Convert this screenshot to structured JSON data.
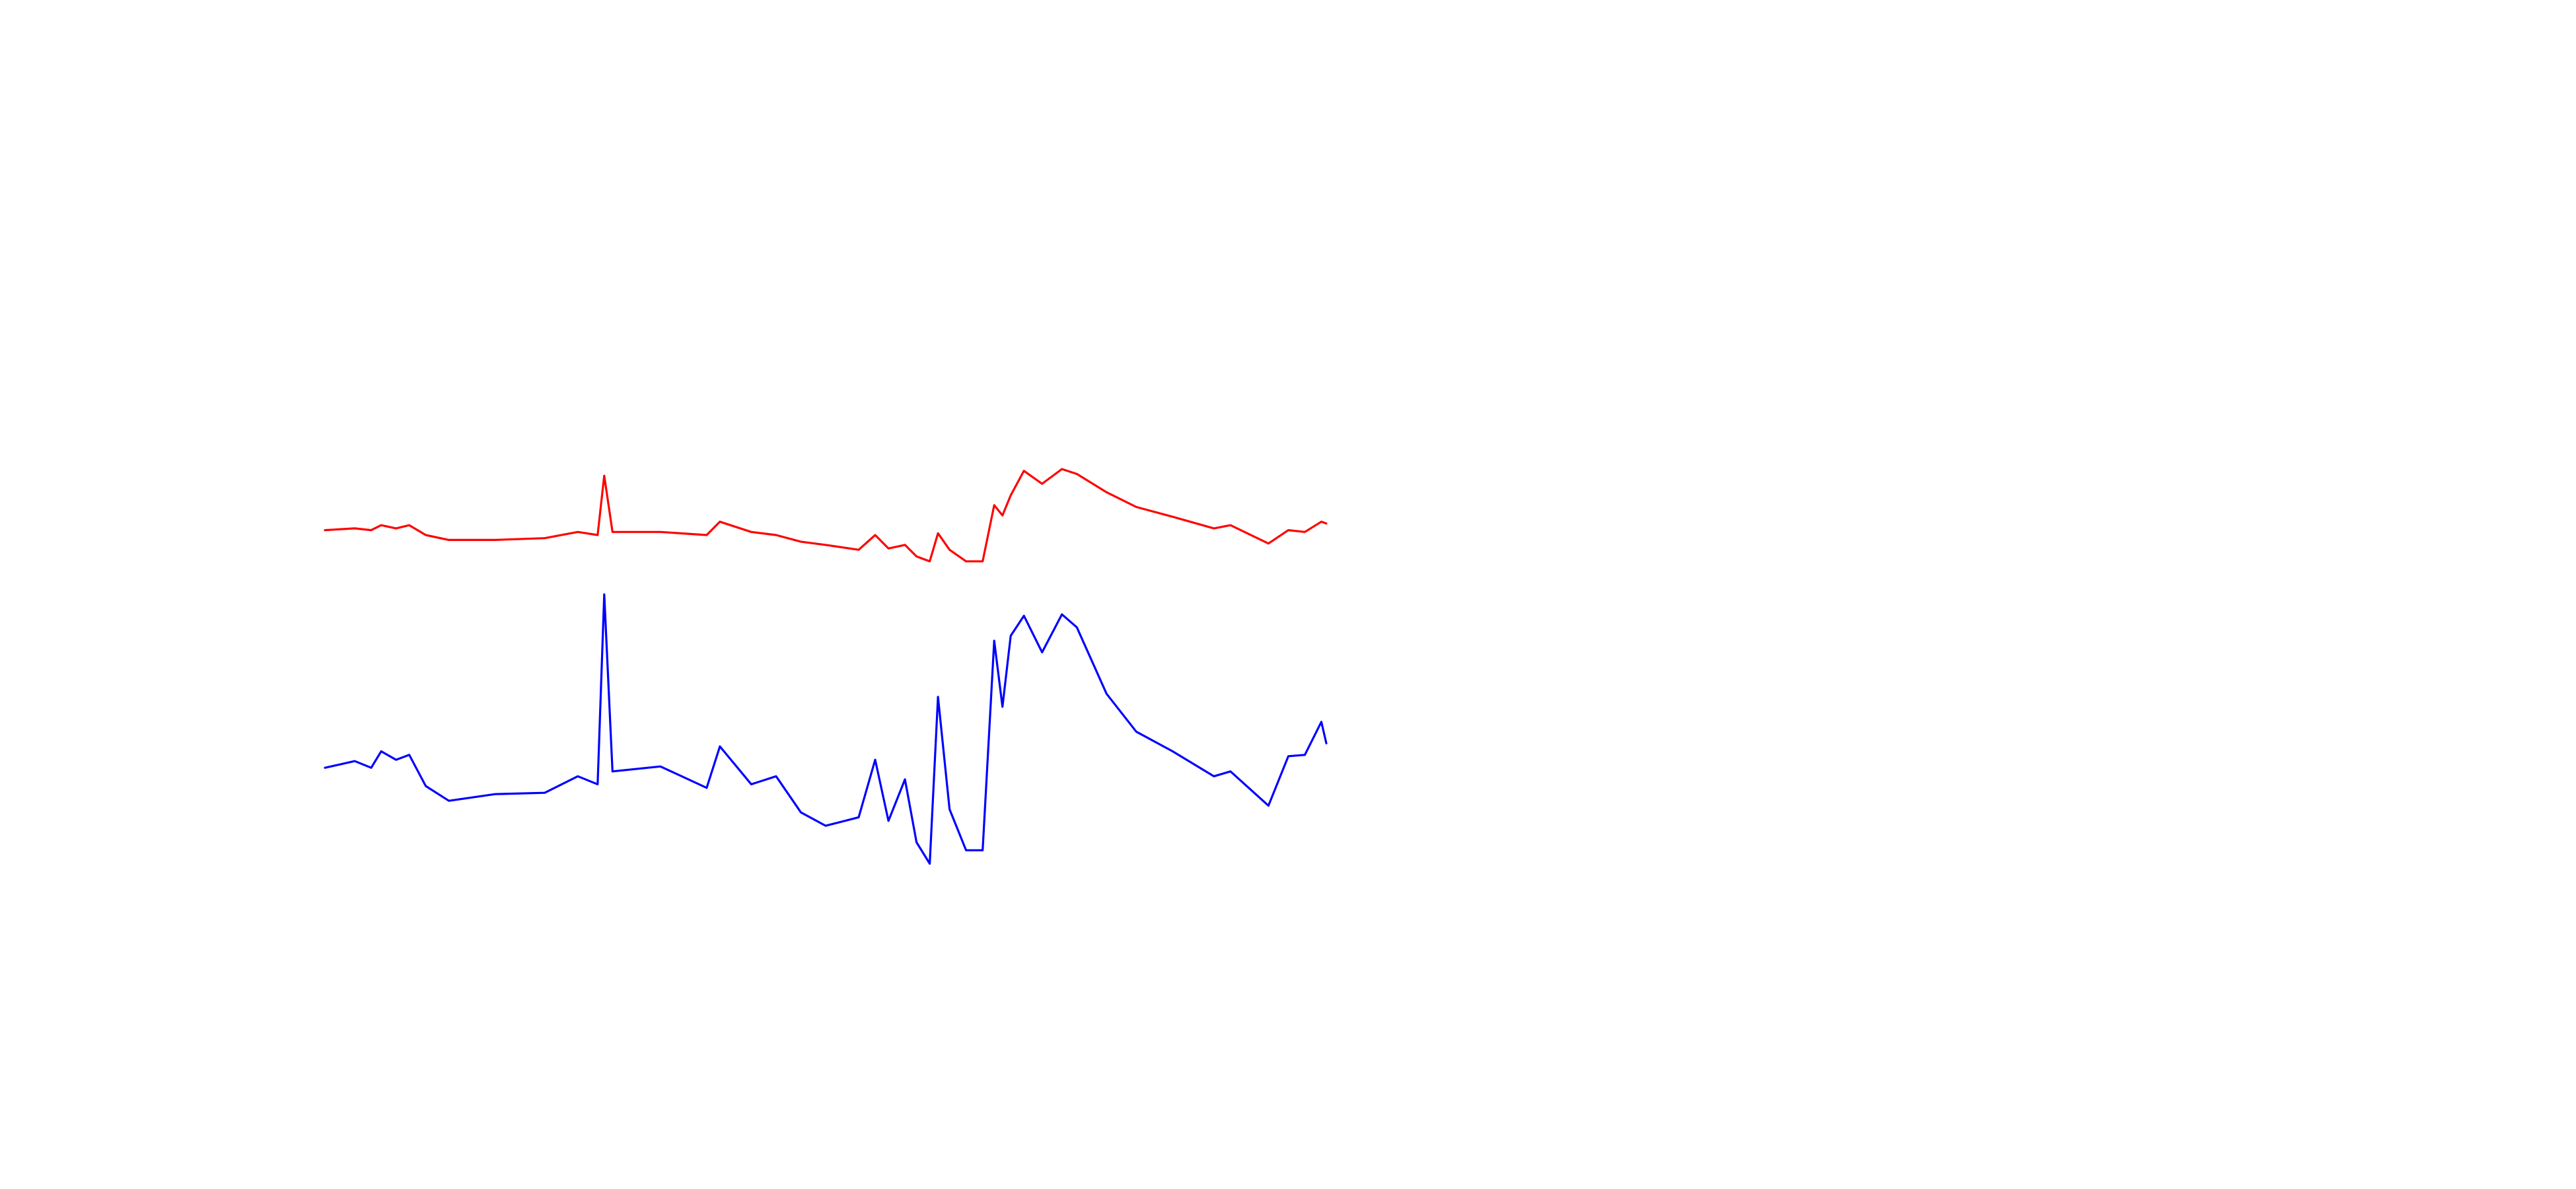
{
  "chart_data": {
    "type": "line",
    "x": [
      0,
      18,
      28,
      34,
      43,
      51,
      61,
      75,
      103,
      133,
      153,
      165,
      169,
      174,
      203,
      231,
      239,
      258,
      273,
      288,
      303,
      323,
      333,
      341,
      351,
      358,
      366,
      371,
      378,
      388,
      398,
      405,
      410,
      415,
      423,
      434,
      446,
      455,
      473,
      491,
      513,
      538,
      548,
      571,
      583,
      593,
      603,
      606
    ],
    "xlim": [
      0,
      606
    ],
    "ylim": [
      0,
      100
    ],
    "series": [
      {
        "color": "#ff0000",
        "values": [
          81.1,
          81.5,
          81.1,
          82.2,
          81.5,
          82.2,
          80.0,
          78.9,
          78.9,
          79.3,
          80.7,
          80.0,
          93.3,
          80.7,
          80.7,
          80.0,
          83.0,
          80.7,
          80.0,
          78.5,
          77.8,
          76.7,
          80.0,
          77.0,
          77.8,
          75.2,
          74.1,
          80.4,
          76.7,
          74.1,
          74.1,
          86.7,
          84.4,
          88.9,
          94.4,
          91.5,
          94.8,
          93.7,
          89.6,
          86.3,
          84.1,
          81.5,
          82.2,
          78.1,
          81.1,
          80.7,
          83.0,
          82.6
        ]
      },
      {
        "color": "#0000ff",
        "values": [
          27.8,
          29.3,
          27.8,
          31.5,
          29.6,
          30.7,
          23.7,
          20.4,
          21.9,
          22.2,
          25.9,
          24.1,
          66.7,
          27.0,
          28.1,
          23.3,
          32.6,
          24.1,
          25.9,
          17.8,
          14.8,
          16.7,
          29.6,
          15.9,
          25.2,
          11.1,
          6.3,
          43.7,
          18.5,
          9.3,
          9.3,
          56.3,
          41.5,
          57.4,
          61.9,
          53.7,
          62.2,
          59.3,
          44.4,
          35.9,
          31.5,
          25.9,
          27.0,
          19.3,
          30.4,
          30.7,
          38.1,
          33.3
        ]
      }
    ]
  }
}
